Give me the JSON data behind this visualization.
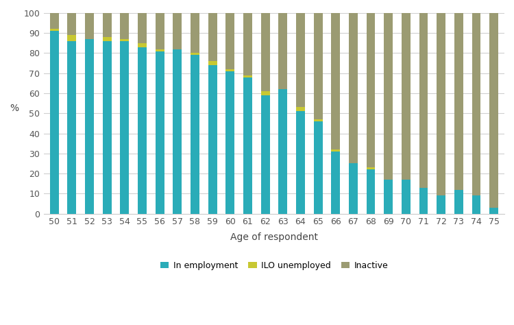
{
  "ages": [
    50,
    51,
    52,
    53,
    54,
    55,
    56,
    57,
    58,
    59,
    60,
    61,
    62,
    63,
    64,
    65,
    66,
    67,
    68,
    69,
    70,
    71,
    72,
    73,
    74,
    75
  ],
  "in_employment": [
    91,
    86,
    87,
    86,
    86,
    83,
    81,
    82,
    79,
    74,
    71,
    68,
    59,
    62,
    51,
    46,
    31,
    25,
    22,
    17,
    17,
    13,
    9,
    12,
    9,
    3
  ],
  "ilo_unemployed": [
    1,
    3,
    0,
    2,
    1,
    2,
    1,
    0,
    1,
    2,
    1,
    1,
    2,
    0,
    2,
    1,
    1,
    0,
    1,
    0,
    0,
    0,
    0,
    0,
    0,
    0
  ],
  "inactive": [
    8,
    11,
    13,
    12,
    13,
    15,
    18,
    18,
    20,
    24,
    28,
    31,
    39,
    38,
    47,
    53,
    68,
    75,
    77,
    83,
    83,
    87,
    91,
    88,
    91,
    97
  ],
  "employment_color": "#2AACB8",
  "unemployed_color": "#C8C832",
  "inactive_color": "#9B9B72",
  "xlabel": "Age of respondent",
  "ylabel": "%",
  "ylim": [
    0,
    100
  ],
  "yticks": [
    0,
    10,
    20,
    30,
    40,
    50,
    60,
    70,
    80,
    90,
    100
  ],
  "legend_labels": [
    "In employment",
    "ILO unemployed",
    "Inactive"
  ],
  "background_color": "#ffffff",
  "plot_bg_color": "#ffffff",
  "grid_color": "#d0d0d0",
  "bar_width": 0.5
}
